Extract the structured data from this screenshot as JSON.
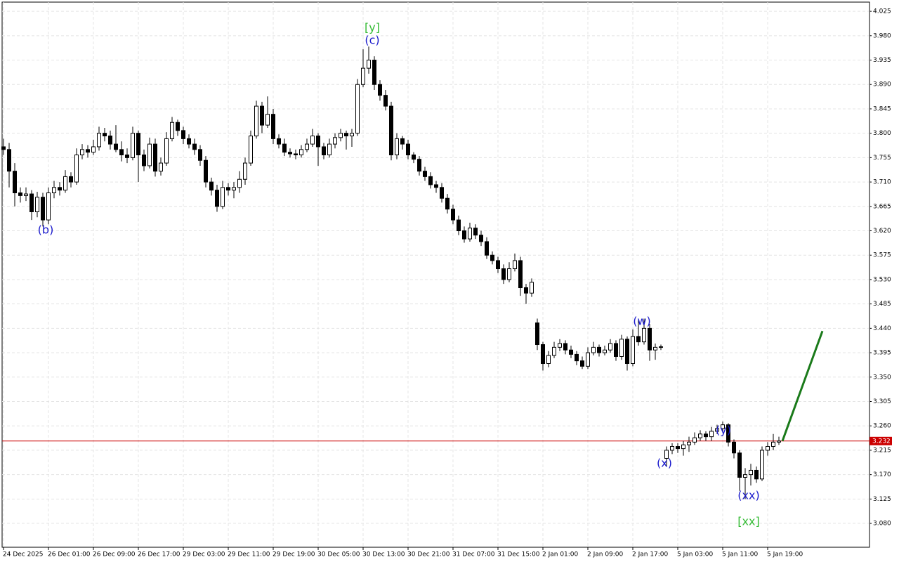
{
  "chart_data": {
    "type": "candlestick",
    "ylim": [
      3.036,
      4.042
    ],
    "yticks": [
      {
        "value": 3.08,
        "label": "3.080"
      },
      "3.125",
      {
        "value": 3.17,
        "label": "3.170"
      },
      "3.215",
      {
        "value": 3.26,
        "label": "3.260"
      },
      "3.305",
      {
        "value": 3.35,
        "label": "3.350"
      },
      "3.395",
      {
        "value": 3.44,
        "label": "3.440"
      },
      "3.485",
      {
        "value": 3.53,
        "label": "3.530"
      },
      "3.575",
      {
        "value": 3.62,
        "label": "3.620"
      },
      "3.665",
      {
        "value": 3.71,
        "label": "3.710"
      },
      "3.755",
      {
        "value": 3.8,
        "label": "3.800"
      },
      "3.845",
      {
        "value": 3.89,
        "label": "3.890"
      },
      "3.935",
      {
        "value": 3.98,
        "label": "3.980"
      },
      "4.025"
    ],
    "grid": true,
    "categories": [
      "24 Dec 2025",
      null,
      null,
      null,
      null,
      null,
      null,
      null,
      "26 Dec 01:00",
      null,
      null,
      null,
      null,
      null,
      null,
      null,
      "26 Dec 09:00",
      null,
      null,
      null,
      null,
      null,
      null,
      null,
      "26 Dec 17:00",
      null,
      null,
      null,
      null,
      null,
      null,
      null,
      "29 Dec 03:00",
      null,
      null,
      null,
      null,
      null,
      null,
      null,
      "29 Dec 11:00",
      null,
      null,
      null,
      null,
      null,
      null,
      null,
      "29 Dec 19:00",
      null,
      null,
      null,
      null,
      null,
      null,
      null,
      "30 Dec 05:00",
      null,
      null,
      null,
      null,
      null,
      null,
      null,
      "30 Dec 13:00",
      null,
      null,
      null,
      null,
      null,
      null,
      null,
      "30 Dec 21:00",
      null,
      null,
      null,
      null,
      null,
      null,
      null,
      "31 Dec 07:00",
      null,
      null,
      null,
      null,
      null,
      null,
      null,
      "31 Dec 15:00",
      null,
      null,
      null,
      null,
      null,
      null,
      null,
      "2 Jan 01:00",
      null,
      null,
      null,
      null,
      null,
      null,
      null,
      "2 Jan 09:00",
      null,
      null,
      null,
      null,
      null,
      null,
      null,
      "2 Jan 17:00",
      null,
      null,
      null,
      null,
      null,
      null,
      null,
      "5 Jan 03:00",
      null,
      null,
      null,
      null,
      null,
      null,
      null,
      "5 Jan 11:00",
      null,
      null,
      null,
      null,
      null,
      null,
      null,
      "5 Jan 19:00",
      null,
      null
    ],
    "ohlc": [
      [
        3.775,
        3.79,
        3.76,
        3.77
      ],
      [
        3.77,
        3.782,
        3.7,
        3.73
      ],
      [
        3.73,
        3.745,
        3.665,
        3.69
      ],
      [
        3.69,
        3.7,
        3.672,
        3.685
      ],
      [
        3.685,
        3.7,
        3.675,
        3.688
      ],
      [
        3.688,
        3.695,
        3.64,
        3.655
      ],
      [
        3.655,
        3.692,
        3.645,
        3.682
      ],
      [
        3.682,
        3.69,
        3.628,
        3.64
      ],
      [
        3.64,
        3.7,
        3.632,
        3.69
      ],
      [
        3.69,
        3.712,
        3.68,
        3.7
      ],
      [
        3.7,
        3.71,
        3.685,
        3.695
      ],
      [
        3.695,
        3.732,
        3.69,
        3.72
      ],
      [
        3.72,
        3.728,
        3.7,
        3.71
      ],
      [
        3.71,
        3.772,
        3.705,
        3.76
      ],
      [
        3.76,
        3.78,
        3.752,
        3.77
      ],
      [
        3.77,
        3.778,
        3.755,
        3.765
      ],
      [
        3.765,
        3.788,
        3.76,
        3.775
      ],
      [
        3.775,
        3.812,
        3.768,
        3.8
      ],
      [
        3.8,
        3.81,
        3.785,
        3.795
      ],
      [
        3.795,
        3.805,
        3.77,
        3.78
      ],
      [
        3.78,
        3.815,
        3.765,
        3.77
      ],
      [
        3.77,
        3.785,
        3.748,
        3.76
      ],
      [
        3.76,
        3.772,
        3.745,
        3.755
      ],
      [
        3.755,
        3.812,
        3.75,
        3.8
      ],
      [
        3.8,
        3.805,
        3.71,
        3.76
      ],
      [
        3.76,
        3.77,
        3.73,
        3.74
      ],
      [
        3.74,
        3.792,
        3.735,
        3.78
      ],
      [
        3.78,
        3.79,
        3.72,
        3.73
      ],
      [
        3.73,
        3.755,
        3.722,
        3.745
      ],
      [
        3.745,
        3.802,
        3.74,
        3.79
      ],
      [
        3.79,
        3.83,
        3.785,
        3.82
      ],
      [
        3.82,
        3.825,
        3.795,
        3.805
      ],
      [
        3.805,
        3.812,
        3.78,
        3.79
      ],
      [
        3.79,
        3.798,
        3.772,
        3.78
      ],
      [
        3.78,
        3.79,
        3.76,
        3.77
      ],
      [
        3.77,
        3.778,
        3.74,
        3.75
      ],
      [
        3.75,
        3.758,
        3.7,
        3.71
      ],
      [
        3.71,
        3.718,
        3.685,
        3.695
      ],
      [
        3.695,
        3.705,
        3.655,
        3.665
      ],
      [
        3.665,
        3.712,
        3.66,
        3.7
      ],
      [
        3.7,
        3.708,
        3.685,
        3.695
      ],
      [
        3.695,
        3.71,
        3.68,
        3.7
      ],
      [
        3.7,
        3.73,
        3.69,
        3.715
      ],
      [
        3.715,
        3.755,
        3.705,
        3.745
      ],
      [
        3.745,
        3.805,
        3.74,
        3.795
      ],
      [
        3.795,
        3.86,
        3.79,
        3.85
      ],
      [
        3.85,
        3.858,
        3.8,
        3.815
      ],
      [
        3.815,
        3.868,
        3.81,
        3.835
      ],
      [
        3.835,
        3.845,
        3.78,
        3.79
      ],
      [
        3.79,
        3.798,
        3.772,
        3.78
      ],
      [
        3.78,
        3.79,
        3.758,
        3.765
      ],
      [
        3.765,
        3.772,
        3.755,
        3.762
      ],
      [
        3.762,
        3.77,
        3.752,
        3.76
      ],
      [
        3.76,
        3.778,
        3.755,
        3.77
      ],
      [
        3.77,
        3.79,
        3.765,
        3.78
      ],
      [
        3.78,
        3.808,
        3.775,
        3.795
      ],
      [
        3.795,
        3.8,
        3.74,
        3.775
      ],
      [
        3.775,
        3.782,
        3.752,
        3.76
      ],
      [
        3.76,
        3.79,
        3.755,
        3.78
      ],
      [
        3.78,
        3.8,
        3.772,
        3.792
      ],
      [
        3.792,
        3.808,
        3.785,
        3.8
      ],
      [
        3.8,
        3.805,
        3.77,
        3.795
      ],
      [
        3.795,
        3.808,
        3.775,
        3.8
      ],
      [
        3.8,
        3.9,
        3.795,
        3.89
      ],
      [
        3.89,
        3.955,
        3.885,
        3.92
      ],
      [
        3.92,
        3.96,
        3.91,
        3.935
      ],
      [
        3.935,
        3.942,
        3.88,
        3.89
      ],
      [
        3.89,
        3.898,
        3.86,
        3.87
      ],
      [
        3.87,
        3.88,
        3.842,
        3.85
      ],
      [
        3.85,
        3.858,
        3.75,
        3.76
      ],
      [
        3.76,
        3.8,
        3.752,
        3.79
      ],
      [
        3.79,
        3.795,
        3.77,
        3.78
      ],
      [
        3.78,
        3.788,
        3.752,
        3.76
      ],
      [
        3.76,
        3.765,
        3.745,
        3.752
      ],
      [
        3.752,
        3.758,
        3.722,
        3.73
      ],
      [
        3.73,
        3.738,
        3.712,
        3.72
      ],
      [
        3.72,
        3.728,
        3.698,
        3.705
      ],
      [
        3.705,
        3.712,
        3.69,
        3.7
      ],
      [
        3.7,
        3.708,
        3.672,
        3.68
      ],
      [
        3.68,
        3.688,
        3.652,
        3.66
      ],
      [
        3.66,
        3.668,
        3.632,
        3.64
      ],
      [
        3.64,
        3.648,
        3.612,
        3.62
      ],
      [
        3.62,
        3.628,
        3.598,
        3.605
      ],
      [
        3.605,
        3.635,
        3.6,
        3.625
      ],
      [
        3.625,
        3.632,
        3.605,
        3.612
      ],
      [
        3.612,
        3.62,
        3.592,
        3.6
      ],
      [
        3.6,
        3.608,
        3.568,
        3.575
      ],
      [
        3.575,
        3.582,
        3.558,
        3.565
      ],
      [
        3.565,
        3.572,
        3.542,
        3.55
      ],
      [
        3.55,
        3.558,
        3.522,
        3.53
      ],
      [
        3.53,
        3.562,
        3.525,
        3.55
      ],
      [
        3.55,
        3.578,
        3.545,
        3.565
      ],
      [
        3.565,
        3.572,
        3.5,
        3.515
      ],
      [
        3.515,
        3.522,
        3.485,
        3.505
      ],
      [
        3.505,
        3.532,
        3.498,
        3.525
      ],
      [
        3.45,
        3.458,
        3.4,
        3.41
      ],
      [
        3.41,
        3.415,
        3.362,
        3.375
      ],
      [
        3.375,
        3.398,
        3.368,
        3.39
      ],
      [
        3.39,
        3.415,
        3.385,
        3.405
      ],
      [
        3.405,
        3.42,
        3.398,
        3.412
      ],
      [
        3.412,
        3.418,
        3.392,
        3.4
      ],
      [
        3.4,
        3.408,
        3.385,
        3.392
      ],
      [
        3.392,
        3.398,
        3.372,
        3.38
      ],
      [
        3.38,
        3.388,
        3.365,
        3.37
      ],
      [
        3.37,
        3.405,
        3.365,
        3.395
      ],
      [
        3.395,
        3.415,
        3.39,
        3.405
      ],
      [
        3.405,
        3.41,
        3.388,
        3.395
      ],
      [
        3.395,
        3.408,
        3.39,
        3.4
      ],
      [
        3.4,
        3.42,
        3.395,
        3.412
      ],
      [
        3.412,
        3.418,
        3.38,
        3.388
      ],
      [
        3.388,
        3.428,
        3.382,
        3.42
      ],
      [
        3.42,
        3.425,
        3.362,
        3.375
      ],
      [
        3.375,
        3.438,
        3.37,
        3.425
      ],
      [
        3.425,
        3.455,
        3.408,
        3.415
      ],
      [
        3.415,
        3.458,
        3.41,
        3.44
      ],
      [
        3.44,
        3.448,
        3.38,
        3.4
      ],
      [
        3.4,
        3.412,
        3.382,
        3.405
      ],
      [
        3.405,
        3.41,
        3.4,
        3.406
      ],
      [
        3.2,
        3.222,
        3.185,
        3.215
      ],
      [
        3.215,
        3.228,
        3.208,
        3.222
      ],
      [
        3.222,
        3.228,
        3.21,
        3.218
      ],
      [
        3.218,
        3.232,
        3.205,
        3.225
      ],
      [
        3.225,
        3.24,
        3.212,
        3.23
      ],
      [
        3.23,
        3.248,
        3.225,
        3.238
      ],
      [
        3.238,
        3.252,
        3.232,
        3.245
      ],
      [
        3.245,
        3.25,
        3.232,
        3.24
      ],
      [
        3.24,
        3.258,
        3.232,
        3.25
      ],
      [
        3.25,
        3.262,
        3.245,
        3.255
      ],
      [
        3.255,
        3.268,
        3.25,
        3.262
      ],
      [
        3.262,
        3.265,
        3.222,
        3.23
      ],
      [
        3.23,
        3.235,
        3.2,
        3.21
      ],
      [
        3.21,
        3.215,
        3.14,
        3.165
      ],
      [
        3.165,
        3.182,
        3.125,
        3.17
      ],
      [
        3.17,
        3.19,
        3.15,
        3.178
      ],
      [
        3.178,
        3.185,
        3.155,
        3.162
      ],
      [
        3.162,
        3.222,
        3.158,
        3.215
      ],
      [
        3.215,
        3.23,
        3.205,
        3.222
      ],
      [
        3.222,
        3.245,
        3.215,
        3.23
      ],
      [
        3.23,
        3.24,
        3.225,
        3.232
      ]
    ],
    "price_line": {
      "value": 3.232,
      "label": "3.232",
      "color": "#cc0000"
    },
    "projection": {
      "color": "#1a7a1a",
      "values": [
        3.232,
        3.435
      ]
    },
    "annotations": [
      {
        "text": "(b)",
        "color": "#1a1acc"
      },
      {
        "text": "[y]",
        "color": "#33bb33"
      },
      {
        "text": "(c)",
        "color": "#1a1acc"
      },
      {
        "text": "(w)",
        "color": "#1a1acc"
      },
      {
        "text": "(x)",
        "color": "#1a1acc"
      },
      {
        "text": "(y)",
        "color": "#1a1acc"
      },
      {
        "text": "(xx)",
        "color": "#1a1acc"
      },
      {
        "text": "[xx]",
        "color": "#33bb33"
      }
    ]
  }
}
